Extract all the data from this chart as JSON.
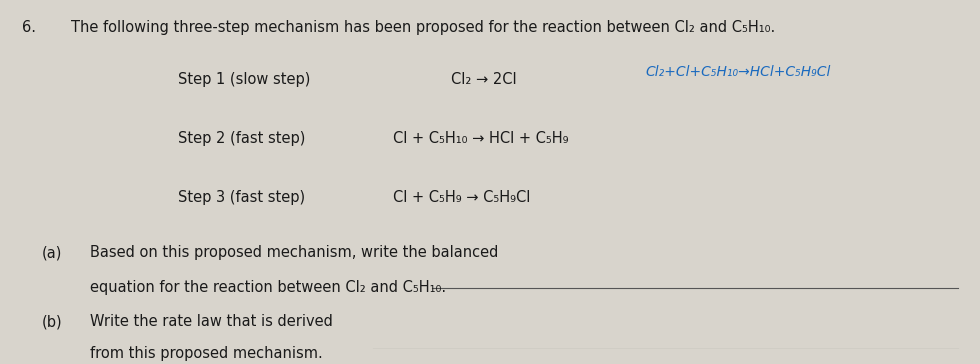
{
  "background_color": "#d8d4cc",
  "question_number": "6.",
  "intro_text": "The following three-step mechanism has been proposed for the reaction between Cl₂ and C₅H₁₀.",
  "step1_label": "Step 1 (slow step)",
  "step1_eq": "Cl₂ → 2Cl",
  "step1_handwritten": "Cl₂+Cl+C₅H₁₀→HCl+C₅H₉Cl",
  "step2_label": "Step 2 (fast step)",
  "step2_eq": "Cl + C₅H₁₀ → HCl + C₅H₉",
  "step3_label": "Step 3 (fast step)",
  "step3_eq": "Cl + C₅H₉ → C₅H₉Cl",
  "part_a_label": "(a)",
  "part_a_text1": "Based on this proposed mechanism, write the balanced",
  "part_a_text2": "equation for the reaction between Cl₂ and C₅H₁₀.",
  "part_b_label": "(b)",
  "part_b_text1": "Write the rate law that is derived",
  "part_b_text2": "from this proposed mechanism.",
  "line_color": "#555555",
  "text_color": "#1a1a1a",
  "handwritten_color": "#1a6abf"
}
